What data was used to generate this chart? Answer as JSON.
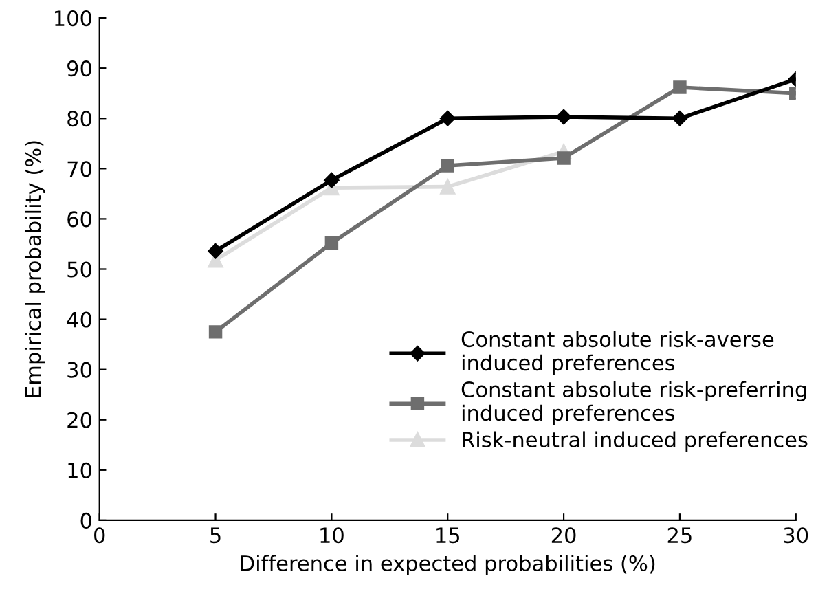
{
  "chart_data": {
    "type": "line",
    "xlabel": "Difference in expected probabilities (%)",
    "ylabel": "Empirical probability (%)",
    "x": [
      5,
      10,
      15,
      20,
      25,
      30
    ],
    "series": [
      {
        "name": "Constant absolute risk-averse\ninduced preferences",
        "color": "#000000",
        "marker": "diamond",
        "values": [
          53.6,
          67.7,
          80,
          80.3,
          80,
          87.8
        ]
      },
      {
        "name": "Constant absolute risk-preferring\ninduced preferences",
        "color": "#6e6e6e",
        "marker": "square",
        "values": [
          37.5,
          55.2,
          70.6,
          72.1,
          86.2,
          85
        ]
      },
      {
        "name": "Risk-neutral induced preferences",
        "color": "#dcdcdc",
        "marker": "triangle",
        "values": [
          51.8,
          66.2,
          66.4,
          73.4,
          null,
          null
        ]
      }
    ],
    "xlim": [
      0,
      30
    ],
    "ylim": [
      0,
      100
    ],
    "xticks": [
      0,
      5,
      10,
      15,
      20,
      25,
      30
    ],
    "yticks": [
      0,
      10,
      20,
      30,
      40,
      50,
      60,
      70,
      80,
      90,
      100
    ],
    "grid": false,
    "legend": "bottom right",
    "line_style": "solid"
  }
}
